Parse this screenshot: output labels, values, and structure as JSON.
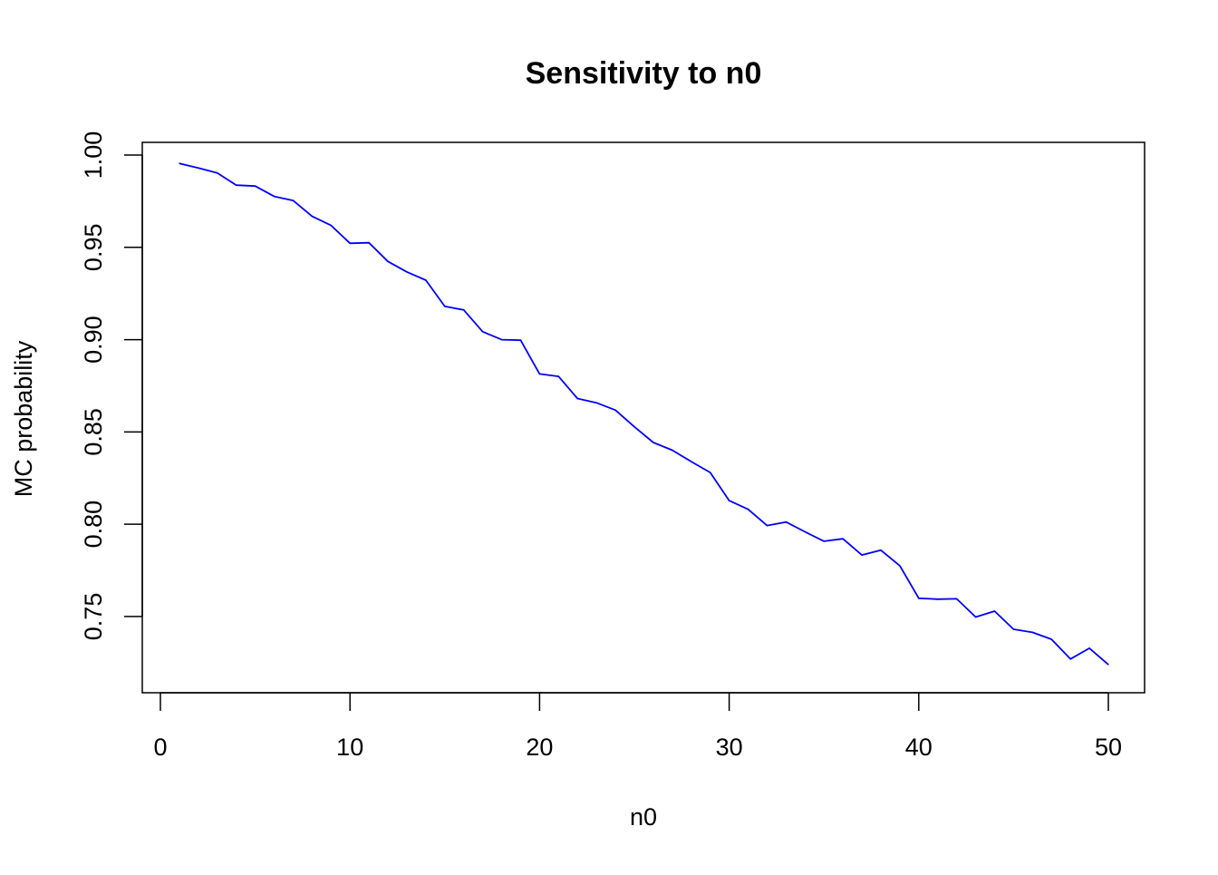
{
  "chart_data": {
    "type": "line",
    "title": "Sensitivity to n0",
    "xlabel": "n0",
    "ylabel": "MC probability",
    "xlim": [
      0,
      50
    ],
    "ylim": [
      0.72,
      1.0
    ],
    "xticks": [
      0,
      10,
      20,
      30,
      40,
      50
    ],
    "xtick_labels": [
      "0",
      "10",
      "20",
      "30",
      "40",
      "50"
    ],
    "yticks": [
      0.75,
      0.8,
      0.85,
      0.9,
      0.95,
      1.0
    ],
    "ytick_labels": [
      "0.75",
      "0.80",
      "0.85",
      "0.90",
      "0.95",
      "1.00"
    ],
    "grid": false,
    "series": [
      {
        "color": "#0000ff",
        "x": [
          1,
          2,
          3,
          4,
          5,
          6,
          7,
          8,
          9,
          10,
          11,
          12,
          13,
          14,
          15,
          16,
          17,
          18,
          19,
          20,
          21,
          22,
          23,
          24,
          25,
          26,
          27,
          28,
          29,
          30,
          31,
          32,
          33,
          34,
          35,
          36,
          37,
          38,
          39,
          40,
          41,
          42,
          43,
          44,
          45,
          46,
          47,
          48,
          49,
          50
        ],
        "values": [
          0.9955,
          0.993,
          0.9903,
          0.9837,
          0.9832,
          0.9776,
          0.9754,
          0.9668,
          0.9619,
          0.9522,
          0.9525,
          0.9424,
          0.9367,
          0.9322,
          0.918,
          0.9161,
          0.9043,
          0.9,
          0.8997,
          0.8814,
          0.8801,
          0.8681,
          0.8658,
          0.8618,
          0.8528,
          0.8443,
          0.8401,
          0.8339,
          0.828,
          0.8128,
          0.8081,
          0.7993,
          0.8012,
          0.7959,
          0.7908,
          0.7921,
          0.7833,
          0.7859,
          0.7775,
          0.7599,
          0.7594,
          0.7596,
          0.7497,
          0.7529,
          0.7431,
          0.7414,
          0.7377,
          0.727,
          0.7328,
          0.724
        ]
      }
    ]
  }
}
